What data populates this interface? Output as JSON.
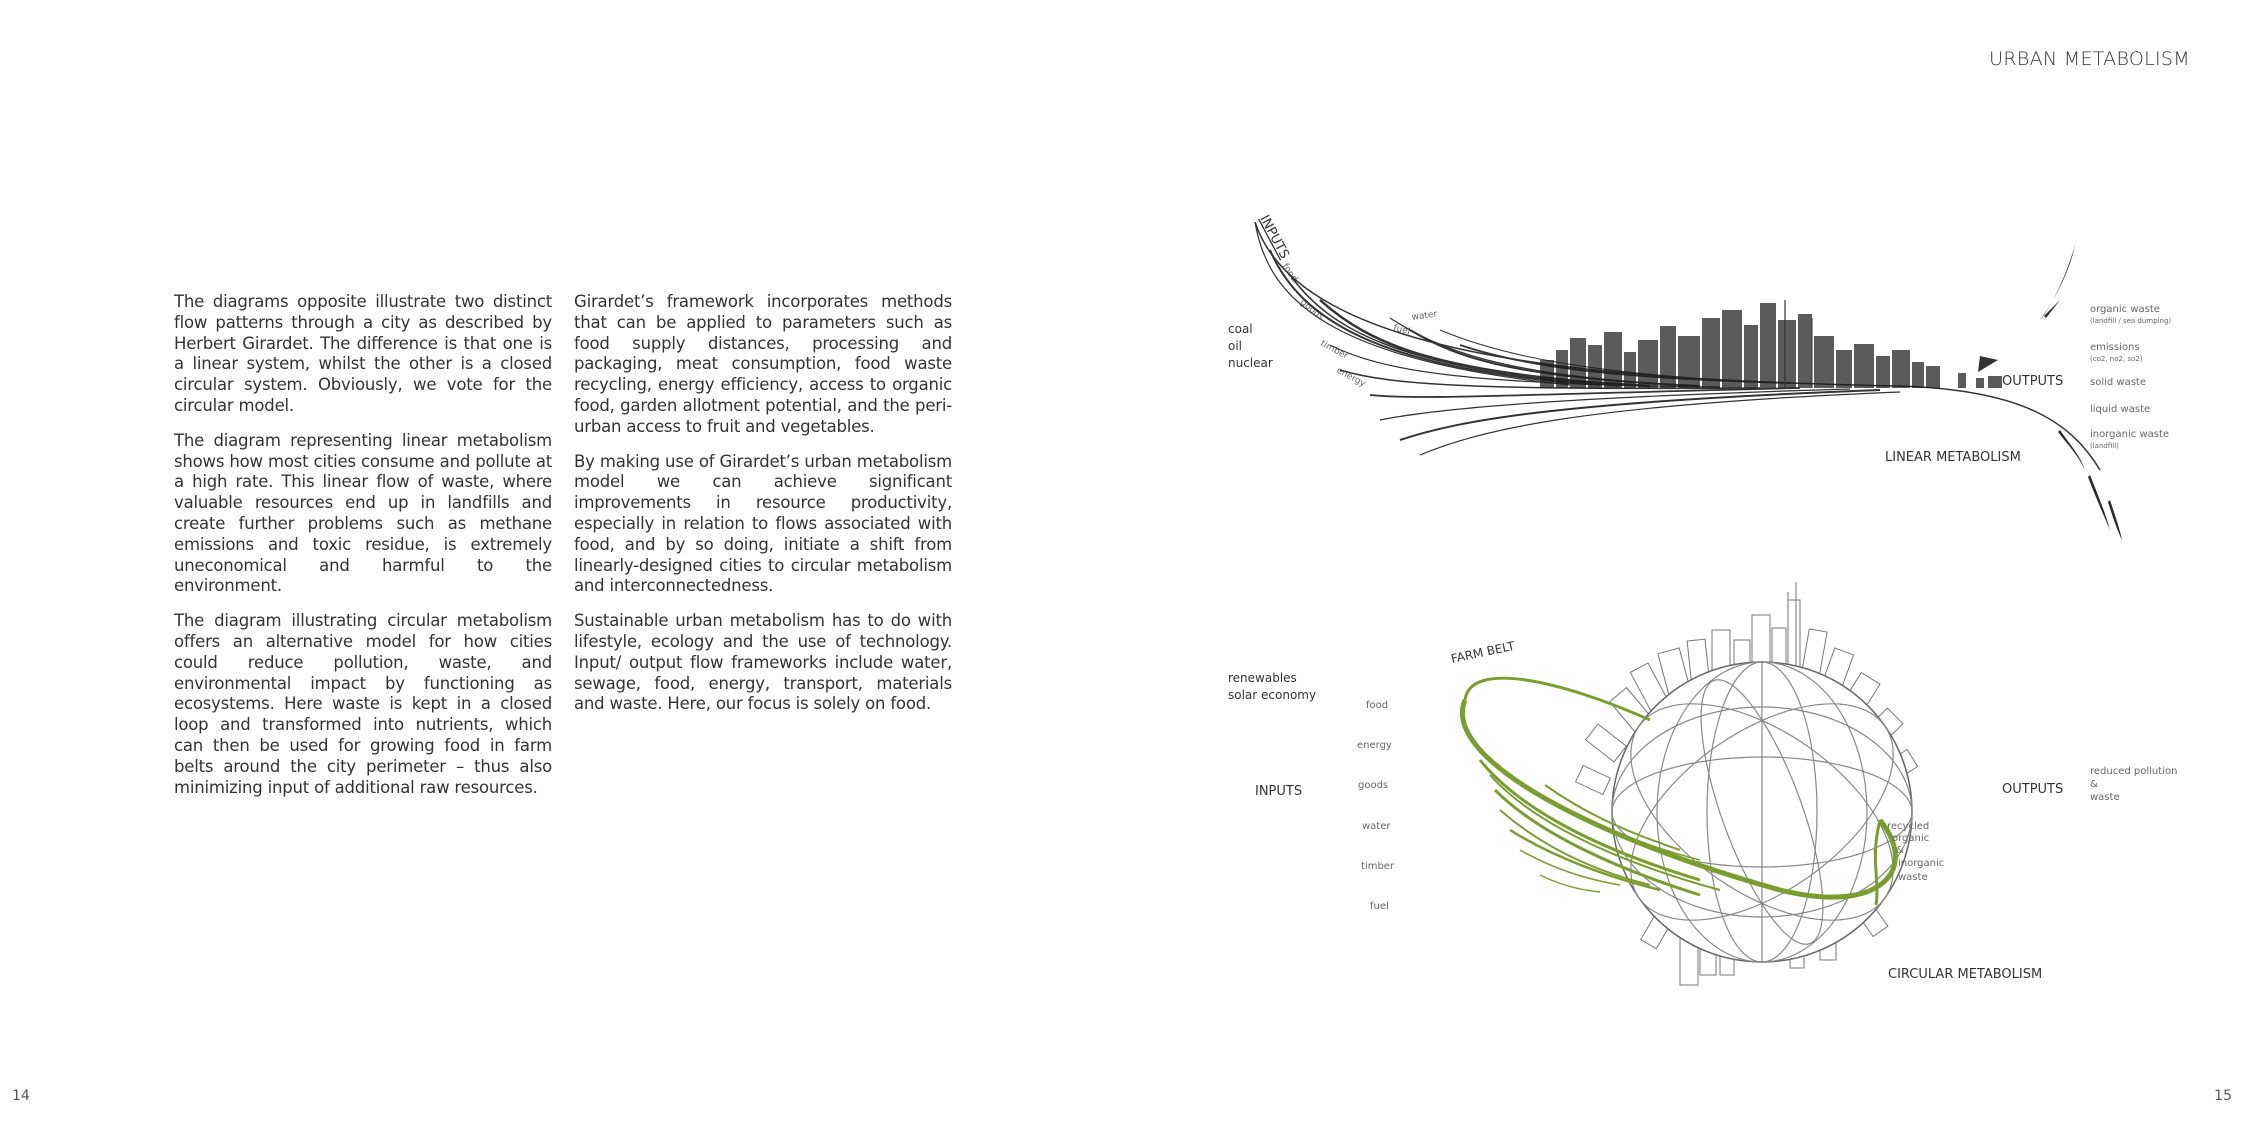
{
  "header": {
    "title": "URBAN METABOLISM"
  },
  "pages": {
    "left": "14",
    "right": "15"
  },
  "text": {
    "col1": [
      "The diagrams opposite illustrate two distinct flow patterns through a city as described by Herbert Girardet. The difference is that one is a linear system, whilst the other is a closed circular system. Obviously, we vote for the circular model.",
      "The diagram representing linear metabolism shows how most cities consume and pollute at a high rate. This linear flow of waste, where valuable resources end up in landfills and create further problems such as methane emissions and toxic residue, is extremely uneconomical and harmful to the environment.",
      "The diagram illustrating circular metabolism offers an alternative model for how cities could reduce pollution, waste, and environmental impact by functioning as ecosystems. Here waste is kept in a closed loop and transformed into nutrients, which can then be used for growing food in farm belts around the city perimeter – thus also minimizing input of additional raw resources."
    ],
    "col2": [
      "Girardet’s framework incorporates methods that can be applied to parameters such as food supply distances, processing and packaging, meat consumption, food waste recycling, energy efficiency, access to organic food, garden allotment potential, and the peri-urban access to fruit and vegetables.",
      "By making use of Girardet’s urban metabolism model we can achieve significant improvements in resource productivity, especially in relation to flows associated with food, and by so doing, initiate a shift from linearly-designed cities to circular metabolism and interconnectedness.",
      "Sustainable urban metabolism has to do with lifestyle, ecology and the use of technology. Input/ output flow frameworks include water, sewage, food, energy, transport, materials and waste. Here, our focus is solely on food."
    ]
  },
  "linear": {
    "title": "LINEAR METABOLISM",
    "inputs_label": "INPUTS",
    "outputs_label": "OUTPUTS",
    "sources": [
      "coal",
      "oil",
      "nuclear"
    ],
    "flows": [
      "food",
      "goods",
      "water",
      "fuel",
      "timber",
      "energy"
    ],
    "outputs": [
      {
        "label": "organic waste",
        "sub": "(landfill / sea dumping)"
      },
      {
        "label": "emissions",
        "sub": "(co2, no2, so2)"
      },
      {
        "label": "solid waste",
        "sub": ""
      },
      {
        "label": "liquid waste",
        "sub": ""
      },
      {
        "label": "inorganic waste",
        "sub": "(landfill)"
      }
    ]
  },
  "circular": {
    "title": "CIRCULAR METABOLISM",
    "inputs_label": "INPUTS",
    "outputs_label": "OUTPUTS",
    "farm_belt": "FARM BELT",
    "sources": [
      "renewables",
      "solar economy"
    ],
    "flows": [
      "food",
      "energy",
      "goods",
      "water",
      "timber",
      "fuel"
    ],
    "recycled": [
      "recycled",
      "organic",
      "&",
      "inorganic",
      "waste"
    ],
    "outputs": [
      "reduced pollution",
      "&",
      "waste"
    ]
  },
  "colors": {
    "green": "#7a9e2e",
    "dark": "#2b2b2b"
  }
}
